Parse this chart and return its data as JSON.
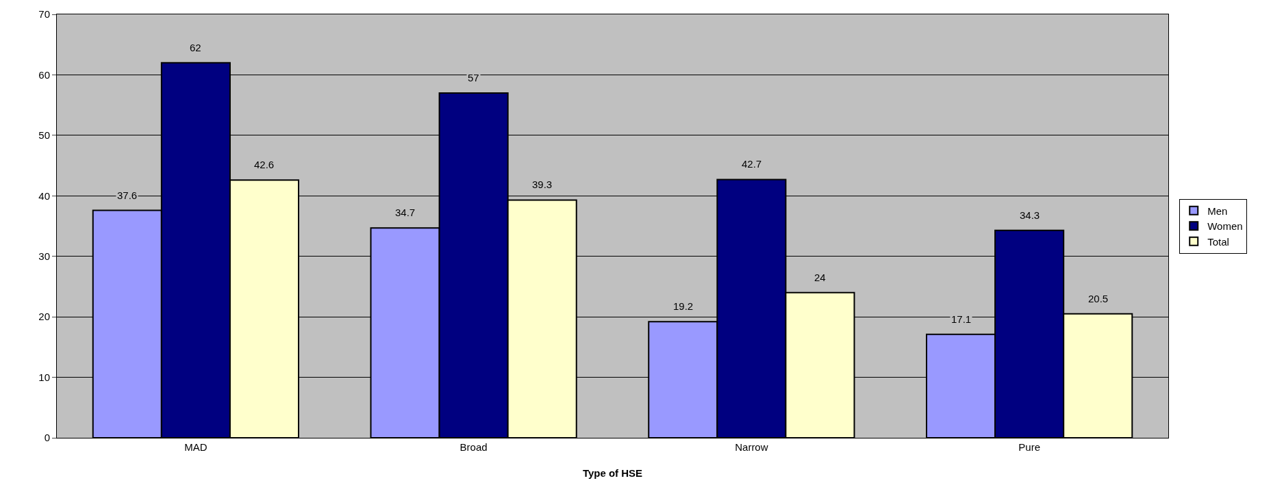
{
  "chart_data": {
    "type": "bar",
    "xlabel": "Type of HSE",
    "categories": [
      "MAD",
      "Broad",
      "Narrow",
      "Pure"
    ],
    "series": [
      {
        "name": "Men",
        "color": "#9999ff",
        "values": [
          37.6,
          34.7,
          19.2,
          17.1
        ]
      },
      {
        "name": "Women",
        "color": "#000080",
        "values": [
          62,
          57,
          42.7,
          34.3
        ]
      },
      {
        "name": "Total",
        "color": "#ffffcc",
        "values": [
          42.6,
          39.3,
          24,
          20.5
        ]
      }
    ],
    "ylim": [
      0,
      70
    ],
    "yticks": [
      0,
      10,
      20,
      30,
      40,
      50,
      60,
      70
    ],
    "grid": "y",
    "legend": "right",
    "data_labels": true
  }
}
